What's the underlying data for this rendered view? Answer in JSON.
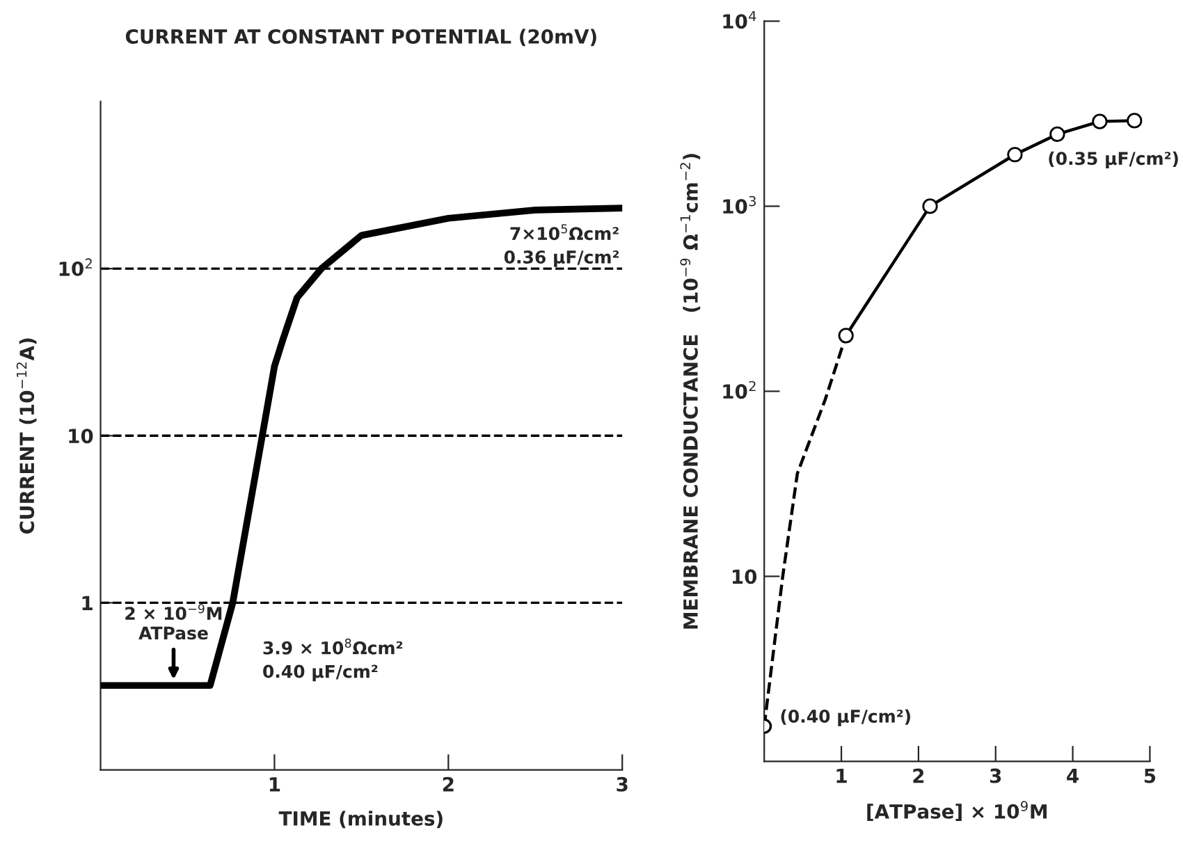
{
  "chart_data": [
    {
      "type": "line",
      "title": "CURRENT AT CONSTANT POTENTIAL (20mV)",
      "xlabel": "TIME (minutes)",
      "ylabel": "CURRENT (10$^{−12}$A)",
      "log": "y",
      "xlim": [
        0,
        3
      ],
      "xticks": [
        1,
        2,
        3
      ],
      "ylim": [
        0.1,
        1000
      ],
      "yticks": [
        1,
        10,
        {
          "value": 100,
          "label": "10$^{2}$"
        }
      ],
      "grid": false,
      "legend": false,
      "series": [
        {
          "color": "#000000",
          "line_style": "solid",
          "marker": "none",
          "x": [
            0,
            0.4,
            0.63,
            0.76,
            0.93,
            1.0,
            1.05,
            1.13,
            1.27,
            1.5,
            2.0,
            2.5,
            3.0
          ],
          "values": [
            0.32,
            0.32,
            0.32,
            1,
            10,
            26,
            38,
            67,
            100,
            158,
            200,
            224,
            230
          ]
        }
      ],
      "ref_lines": [
        {
          "axis": "y",
          "value": 1,
          "color": "#000000",
          "line_style": "dashed"
        },
        {
          "axis": "y",
          "value": 10,
          "color": "#000000",
          "line_style": "dashed"
        },
        {
          "axis": "y",
          "value": 100,
          "color": "#000000",
          "line_style": "dashed"
        }
      ],
      "annotations": [
        {
          "text": "2 × 10$^{−9}$M\nATPase",
          "x": 0.42,
          "y": 0.32
        },
        "3.9 × 10$^{8}$Ωcm²",
        "0.40 µF/cm²",
        "7×10$^{5}$Ωcm²",
        "0.36 µF/cm²"
      ]
    },
    {
      "type": "line",
      "xlabel": "[ATPase] × 10$^{9}$M",
      "ylabel": "MEMBRANE CONDUCTANCE   (10$^{−9}$ Ω$^{−1}$cm$^{−2}$)",
      "log": "y",
      "xlim": [
        0,
        5
      ],
      "xticks": [
        1,
        2,
        3,
        4,
        5
      ],
      "ylim": [
        1,
        10000
      ],
      "yticks": [
        10,
        {
          "value": 100,
          "label": "10$^{2}$"
        },
        {
          "value": 1000,
          "label": "10$^{3}$"
        },
        {
          "value": 10000,
          "label": "10$^{4}$"
        }
      ],
      "grid": false,
      "legend": false,
      "series": [
        {
          "type": "line",
          "color": "#000000",
          "line_style": "dashed",
          "marker": "none",
          "x": [
            0,
            0.24,
            0.43,
            0.79,
            1.06
          ],
          "values": [
            1.55,
            10,
            36,
            90,
            200
          ]
        },
        {
          "type": "line",
          "color": "#000000",
          "line_style": "solid",
          "marker": "circle",
          "x": [
            1.06,
            2.15,
            3.25,
            3.8,
            4.35,
            4.8
          ],
          "values": [
            200,
            1000,
            1900,
            2450,
            2870,
            2900
          ]
        },
        {
          "type": "scatter",
          "color": "#000000",
          "marker": "circle",
          "x": [
            0
          ],
          "values": [
            1.55
          ]
        }
      ],
      "annotations": [
        {
          "text": "(0.40 µF/cm²)",
          "x": 0,
          "y": 1.55
        },
        {
          "text": "(0.35 µF/cm²)",
          "x": 4.8,
          "y": 2900
        }
      ]
    }
  ]
}
